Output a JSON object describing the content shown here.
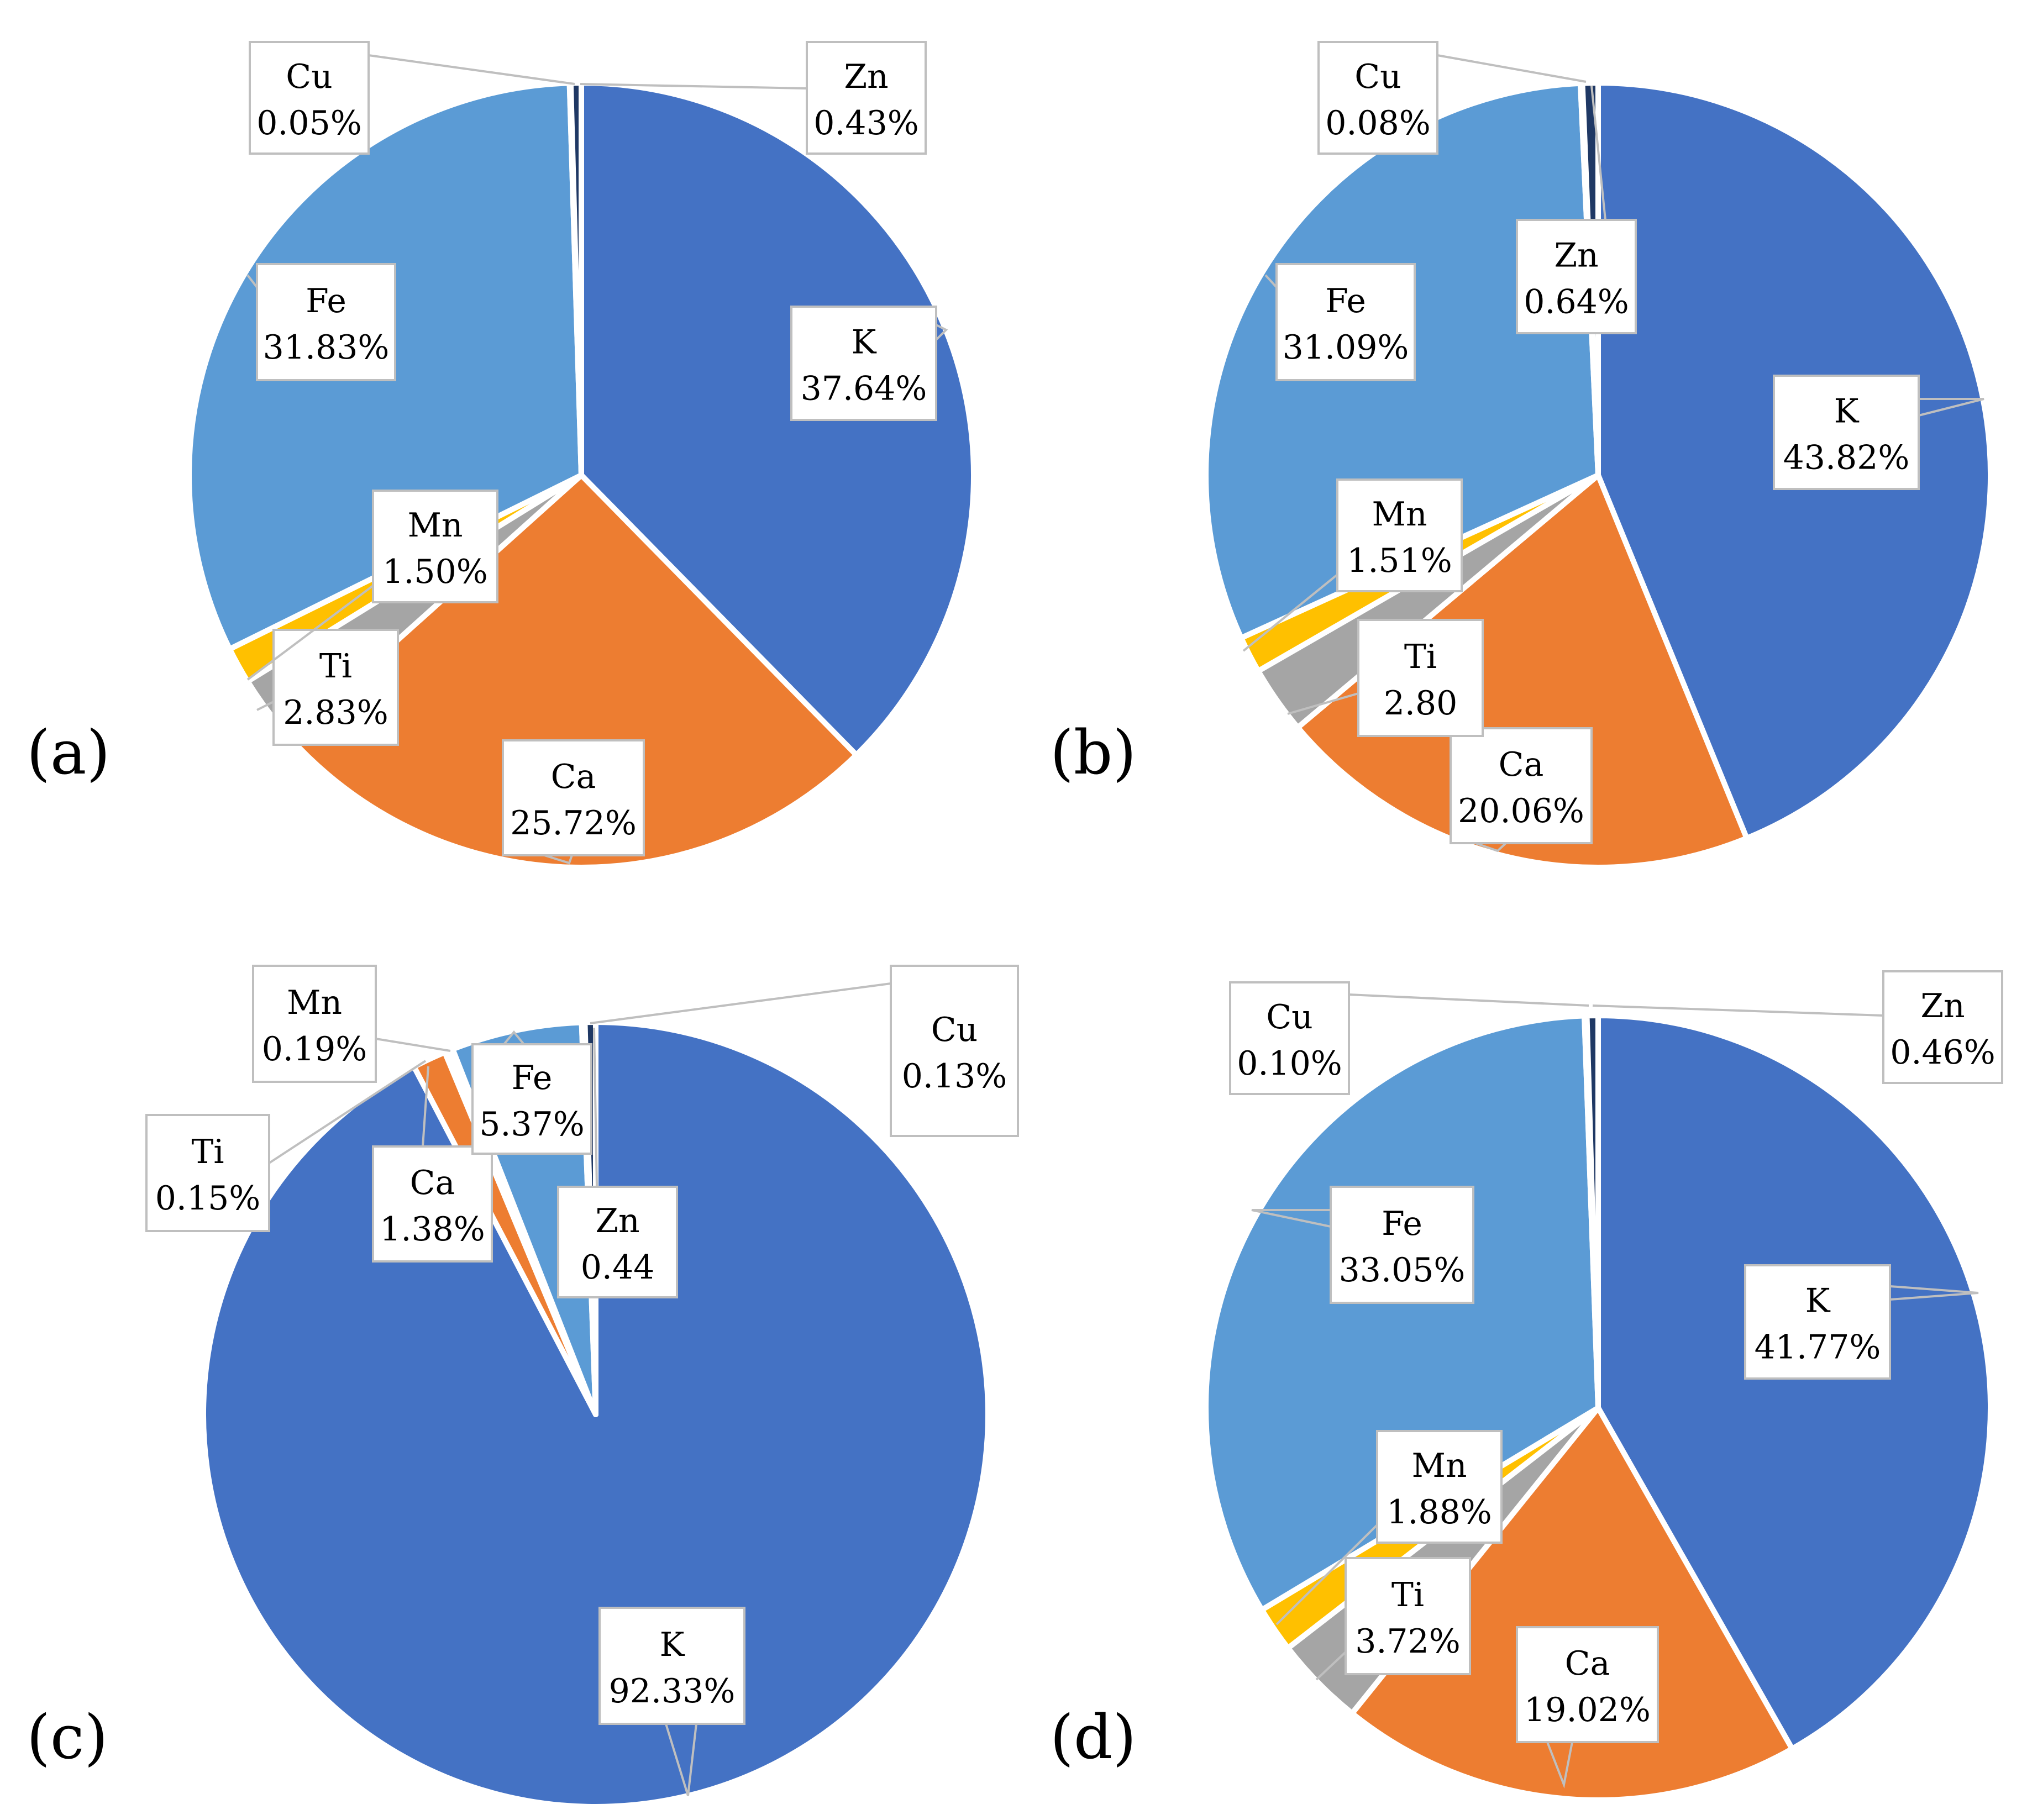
{
  "colors": {
    "K": "#4472C4",
    "Ca": "#ED7D31",
    "Ti": "#A5A5A5",
    "Mn": "#FFC000",
    "Fe": "#5B9BD5",
    "Cu": "#264478",
    "Zn": "#1F3864"
  },
  "chart_data": [
    {
      "type": "pie",
      "panel": "(a)",
      "slices": [
        {
          "name": "K",
          "value": 37.64,
          "label": "37.64%"
        },
        {
          "name": "Ca",
          "value": 25.72,
          "label": "25.72%"
        },
        {
          "name": "Ti",
          "value": 2.83,
          "label": "2.83%"
        },
        {
          "name": "Mn",
          "value": 1.5,
          "label": "1.50%"
        },
        {
          "name": "Fe",
          "value": 31.83,
          "label": "31.83%"
        },
        {
          "name": "Cu",
          "value": 0.05,
          "label": "0.05%"
        },
        {
          "name": "Zn",
          "value": 0.43,
          "label": "0.43%"
        }
      ]
    },
    {
      "type": "pie",
      "panel": "(b)",
      "slices": [
        {
          "name": "K",
          "value": 43.82,
          "label": "43.82%"
        },
        {
          "name": "Ca",
          "value": 20.06,
          "label": "20.06%"
        },
        {
          "name": "Ti",
          "value": 2.8,
          "label": "2.80"
        },
        {
          "name": "Mn",
          "value": 1.51,
          "label": "1.51%"
        },
        {
          "name": "Fe",
          "value": 31.09,
          "label": "31.09%"
        },
        {
          "name": "Cu",
          "value": 0.08,
          "label": "0.08%"
        },
        {
          "name": "Zn",
          "value": 0.64,
          "label": "0.64%"
        }
      ]
    },
    {
      "type": "pie",
      "panel": "(c)",
      "slices": [
        {
          "name": "K",
          "value": 92.33,
          "label": "92.33%"
        },
        {
          "name": "Ca",
          "value": 1.38,
          "label": "1.38%"
        },
        {
          "name": "Ti",
          "value": 0.15,
          "label": "0.15%"
        },
        {
          "name": "Mn",
          "value": 0.19,
          "label": "0.19%"
        },
        {
          "name": "Fe",
          "value": 5.37,
          "label": "5.37%"
        },
        {
          "name": "Cu",
          "value": 0.13,
          "label": "0.13%"
        },
        {
          "name": "Zn",
          "value": 0.44,
          "label": "0.44"
        }
      ]
    },
    {
      "type": "pie",
      "panel": "(d)",
      "slices": [
        {
          "name": "K",
          "value": 41.77,
          "label": "41.77%"
        },
        {
          "name": "Ca",
          "value": 19.02,
          "label": "19.02%"
        },
        {
          "name": "Ti",
          "value": 3.72,
          "label": "3.72%"
        },
        {
          "name": "Mn",
          "value": 1.88,
          "label": "1.88%"
        },
        {
          "name": "Fe",
          "value": 33.05,
          "label": "33.05%"
        },
        {
          "name": "Cu",
          "value": 0.1,
          "label": "0.10%"
        },
        {
          "name": "Zn",
          "value": 0.46,
          "label": "0.46%"
        }
      ]
    }
  ]
}
